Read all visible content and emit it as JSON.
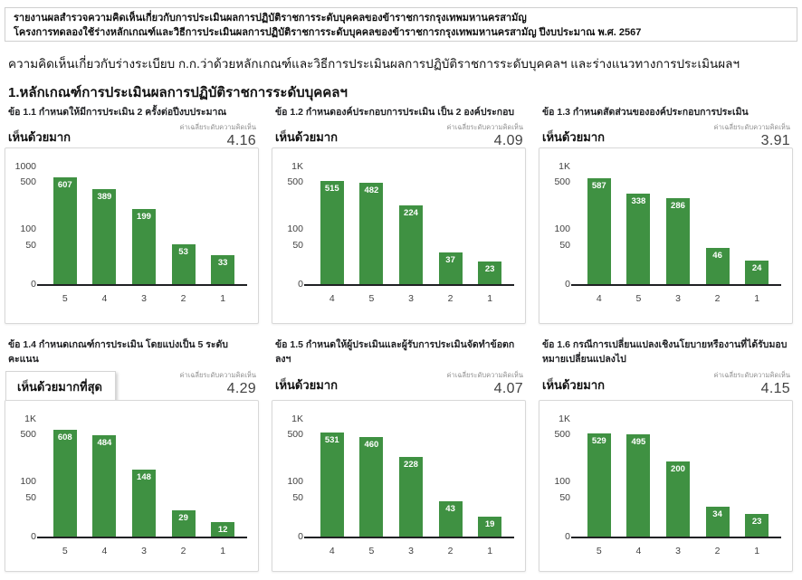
{
  "header": {
    "line1": "รายงานผลสำรวจความคิดเห็นเกี่ยวกับการประเมินผลการปฏิบัติราชการระดับบุคคลของข้าราชการกรุงเทพมหานครสามัญ",
    "line2": "โครงการทดลองใช้ร่างหลักเกณฑ์และวิธีการประเมินผลการปฏิบัติราชการระดับบุคคลของข้าราชการกรุงเทพมหานครสามัญ ปีงบประมาณ พ.ศ. 2567"
  },
  "subtitle": "ความคิดเห็นเกี่ยวกับร่างระเบียบ ก.ก.ว่าด้วยหลักเกณฑ์และวิธีการประเมินผลการปฏิบัติราชการระดับบุคคลฯ และร่างแนวทางการประเมินผลฯ",
  "section_title": "1.หลักเกณฑ์การประเมินผลการปฏิบัติราชการระดับบุคคลฯ",
  "mean_caption": "ค่าเฉลี่ยระดับความคิดเห็น",
  "colors": {
    "bar_green": "#3f9142",
    "axis_dark": "#202124",
    "card_border": "#d8d8d8",
    "caption_gray": "#8e8e8e",
    "value_gray": "#424242"
  },
  "chart_data": [
    {
      "type": "bar",
      "title": "ข้อ 1.1 กำหนดให้มีการประเมิน 2 ครั้งต่อปีงบประมาณ",
      "opinion_label": "เห็นด้วยมาก",
      "opinion_boxed": false,
      "mean": "4.16",
      "categories": [
        "5",
        "4",
        "3",
        "2",
        "1"
      ],
      "values": [
        607,
        389,
        199,
        53,
        33
      ],
      "y_ticks": [
        {
          "label": "1000",
          "value": 1000
        },
        {
          "label": "500",
          "value": 500
        },
        {
          "label": "100",
          "value": 100
        },
        {
          "label": "50",
          "value": 50
        },
        {
          "label": "0",
          "value": 0
        }
      ],
      "ylim": [
        0,
        1000
      ],
      "grid": false,
      "legend": "none"
    },
    {
      "type": "bar",
      "title": "ข้อ 1.2 กำหนดองค์ประกอบการประเมิน เป็น 2 องค์ประกอบ",
      "opinion_label": "เห็นด้วยมาก",
      "opinion_boxed": false,
      "mean": "4.09",
      "categories": [
        "4",
        "5",
        "3",
        "2",
        "1"
      ],
      "values": [
        515,
        482,
        224,
        37,
        23
      ],
      "y_ticks": [
        {
          "label": "1K",
          "value": 1000
        },
        {
          "label": "500",
          "value": 500
        },
        {
          "label": "100",
          "value": 100
        },
        {
          "label": "50",
          "value": 50
        },
        {
          "label": "0",
          "value": 0
        }
      ],
      "ylim": [
        0,
        1000
      ],
      "grid": false,
      "legend": "none"
    },
    {
      "type": "bar",
      "title": "ข้อ 1.3 กำหนดสัดส่วนขององค์ประกอบการประเมิน",
      "opinion_label": "เห็นด้วยมาก",
      "opinion_boxed": false,
      "mean": "3.91",
      "categories": [
        "4",
        "5",
        "3",
        "2",
        "1"
      ],
      "values": [
        587,
        338,
        286,
        46,
        24
      ],
      "y_ticks": [
        {
          "label": "1K",
          "value": 1000
        },
        {
          "label": "500",
          "value": 500
        },
        {
          "label": "100",
          "value": 100
        },
        {
          "label": "50",
          "value": 50
        },
        {
          "label": "0",
          "value": 0
        }
      ],
      "ylim": [
        0,
        1000
      ],
      "grid": false,
      "legend": "none"
    },
    {
      "type": "bar",
      "title": "ข้อ 1.4 กำหนดเกณฑ์การประเมิน โดยแบ่งเป็น 5 ระดับคะแนน",
      "opinion_label": "เห็นด้วยมากที่สุด",
      "opinion_boxed": true,
      "mean": "4.29",
      "categories": [
        "5",
        "4",
        "3",
        "2",
        "1"
      ],
      "values": [
        608,
        484,
        148,
        29,
        12
      ],
      "y_ticks": [
        {
          "label": "1K",
          "value": 1000
        },
        {
          "label": "500",
          "value": 500
        },
        {
          "label": "100",
          "value": 100
        },
        {
          "label": "50",
          "value": 50
        },
        {
          "label": "0",
          "value": 0
        }
      ],
      "ylim": [
        0,
        1000
      ],
      "grid": false,
      "legend": "none"
    },
    {
      "type": "bar",
      "title": "ข้อ 1.5 กำหนดให้ผู้ประเมินและผู้รับการประเมินจัดทำข้อตกลงฯ",
      "opinion_label": "เห็นด้วยมาก",
      "opinion_boxed": false,
      "mean": "4.07",
      "categories": [
        "4",
        "5",
        "3",
        "2",
        "1"
      ],
      "values": [
        531,
        460,
        228,
        43,
        19
      ],
      "y_ticks": [
        {
          "label": "1K",
          "value": 1000
        },
        {
          "label": "500",
          "value": 500
        },
        {
          "label": "100",
          "value": 100
        },
        {
          "label": "50",
          "value": 50
        },
        {
          "label": "0",
          "value": 0
        }
      ],
      "ylim": [
        0,
        1000
      ],
      "grid": false,
      "legend": "none"
    },
    {
      "type": "bar",
      "title": "ข้อ 1.6 กรณีการเปลี่ยนแปลงเชิงนโยบายหรืองานที่ได้รับมอบหมายเปลี่ยนแปลงไป",
      "opinion_label": "เห็นด้วยมาก",
      "opinion_boxed": false,
      "mean": "4.15",
      "categories": [
        "5",
        "4",
        "3",
        "2",
        "1"
      ],
      "values": [
        529,
        495,
        200,
        34,
        23
      ],
      "y_ticks": [
        {
          "label": "1K",
          "value": 1000
        },
        {
          "label": "500",
          "value": 500
        },
        {
          "label": "100",
          "value": 100
        },
        {
          "label": "50",
          "value": 50
        },
        {
          "label": "0",
          "value": 0
        }
      ],
      "ylim": [
        0,
        1000
      ],
      "grid": false,
      "legend": "none"
    }
  ]
}
